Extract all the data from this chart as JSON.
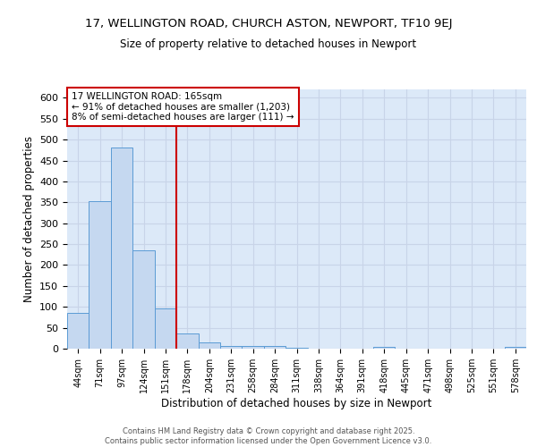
{
  "title1": "17, WELLINGTON ROAD, CHURCH ASTON, NEWPORT, TF10 9EJ",
  "title2": "Size of property relative to detached houses in Newport",
  "xlabel": "Distribution of detached houses by size in Newport",
  "ylabel": "Number of detached properties",
  "categories": [
    "44sqm",
    "71sqm",
    "97sqm",
    "124sqm",
    "151sqm",
    "178sqm",
    "204sqm",
    "231sqm",
    "258sqm",
    "284sqm",
    "311sqm",
    "338sqm",
    "364sqm",
    "391sqm",
    "418sqm",
    "445sqm",
    "471sqm",
    "498sqm",
    "525sqm",
    "551sqm",
    "578sqm"
  ],
  "values": [
    85,
    352,
    480,
    236,
    97,
    37,
    16,
    7,
    7,
    7,
    2,
    0,
    0,
    0,
    4,
    0,
    0,
    0,
    0,
    0,
    4
  ],
  "bar_color": "#c5d8f0",
  "bar_edge_color": "#5b9bd5",
  "grid_color": "#c8d4e8",
  "background_color": "#dce9f8",
  "red_line_x": 4.5,
  "annotation_text": "17 WELLINGTON ROAD: 165sqm\n← 91% of detached houses are smaller (1,203)\n8% of semi-detached houses are larger (111) →",
  "annotation_box_color": "#ffffff",
  "annotation_box_edge": "#cc0000",
  "red_line_color": "#cc0000",
  "footer_text": "Contains HM Land Registry data © Crown copyright and database right 2025.\nContains public sector information licensed under the Open Government Licence v3.0.",
  "ylim": [
    0,
    620
  ],
  "yticks": [
    0,
    50,
    100,
    150,
    200,
    250,
    300,
    350,
    400,
    450,
    500,
    550,
    600
  ]
}
